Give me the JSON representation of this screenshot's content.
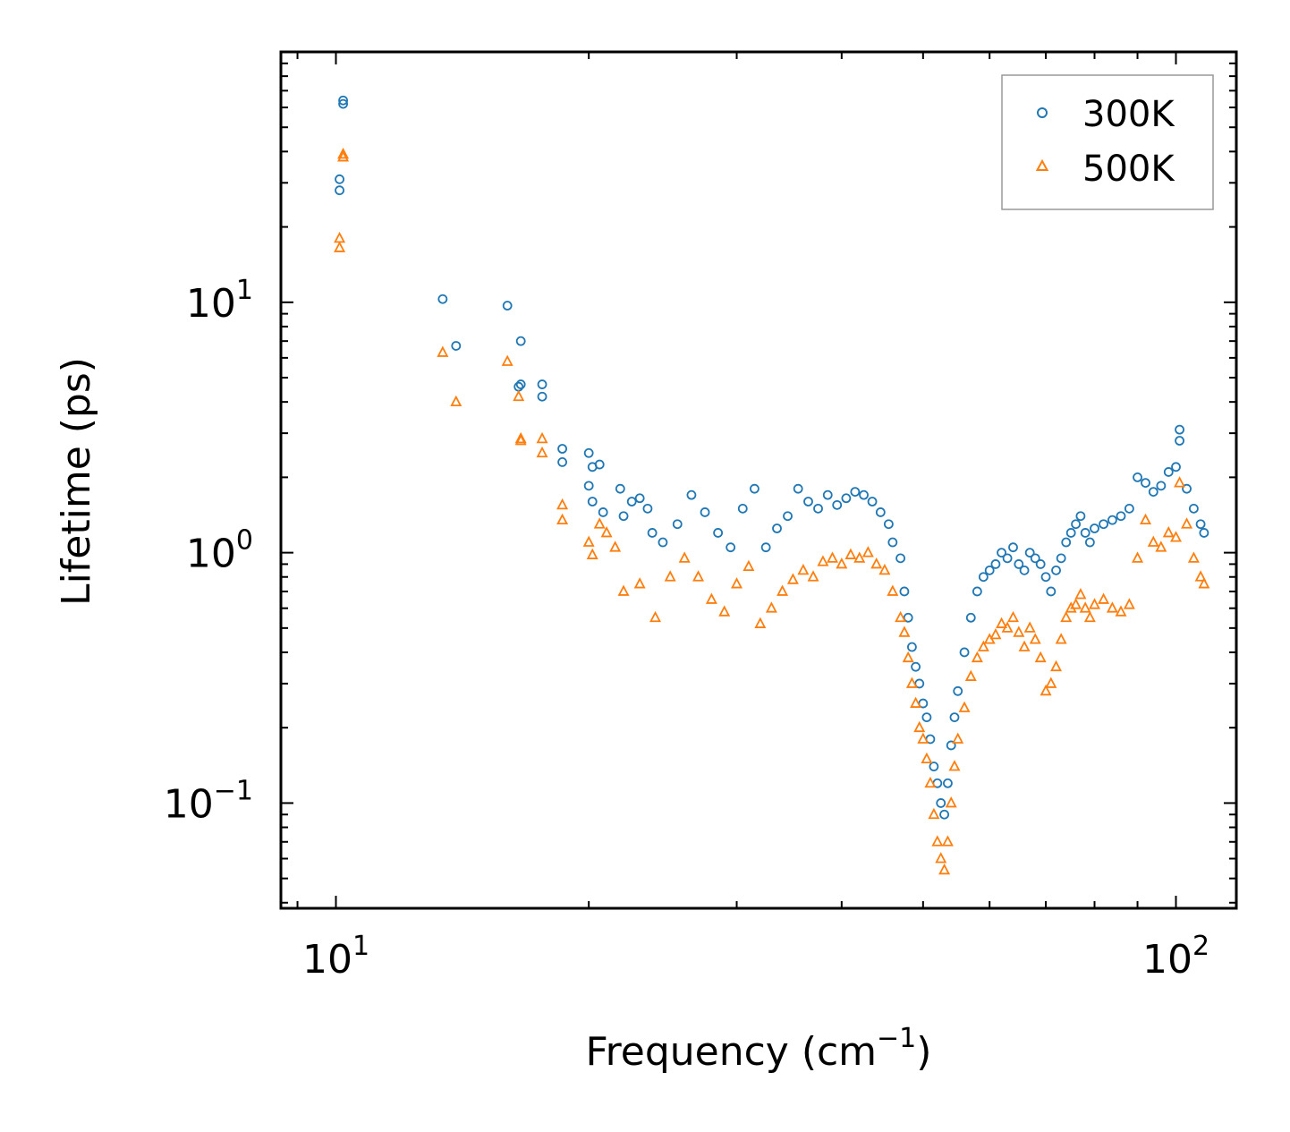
{
  "chart_data": {
    "type": "scatter",
    "title": "",
    "xlabel": "Frequency (cm",
    "xlabel_sup": "−1",
    "xlabel_end": ")",
    "ylabel": "Lifetime (ps)",
    "xscale": "log",
    "yscale": "log",
    "xlim": [
      8.6,
      118
    ],
    "ylim": [
      0.038,
      100
    ],
    "x_ticks": [
      {
        "value": 10,
        "base": "10",
        "exp": "1"
      },
      {
        "value": 100,
        "base": "10",
        "exp": "2"
      }
    ],
    "y_ticks": [
      {
        "value": 0.1,
        "base": "10",
        "exp": "−1"
      },
      {
        "value": 1,
        "base": "10",
        "exp": "0"
      },
      {
        "value": 10,
        "base": "10",
        "exp": "1"
      }
    ],
    "legend_position": "top-right",
    "series": [
      {
        "name": "300K",
        "marker": "circle",
        "color": "#1f77b4",
        "points": [
          [
            10.1,
            31
          ],
          [
            10.1,
            28
          ],
          [
            10.2,
            62
          ],
          [
            10.2,
            64
          ],
          [
            13.4,
            10.3
          ],
          [
            13.9,
            6.7
          ],
          [
            16.0,
            9.7
          ],
          [
            16.5,
            4.6
          ],
          [
            16.6,
            7.0
          ],
          [
            16.6,
            4.7
          ],
          [
            17.6,
            4.7
          ],
          [
            17.6,
            4.2
          ],
          [
            18.6,
            2.6
          ],
          [
            18.6,
            2.3
          ],
          [
            20.0,
            2.5
          ],
          [
            20.2,
            2.2
          ],
          [
            20.6,
            2.25
          ],
          [
            20.0,
            1.85
          ],
          [
            20.2,
            1.6
          ],
          [
            20.8,
            1.45
          ],
          [
            21.8,
            1.8
          ],
          [
            22.0,
            1.4
          ],
          [
            23.0,
            1.65
          ],
          [
            23.5,
            1.5
          ],
          [
            22.5,
            1.6
          ],
          [
            23.8,
            1.2
          ],
          [
            24.5,
            1.1
          ],
          [
            25.5,
            1.3
          ],
          [
            26.5,
            1.7
          ],
          [
            27.5,
            1.45
          ],
          [
            28.5,
            1.2
          ],
          [
            29.5,
            1.05
          ],
          [
            30.5,
            1.5
          ],
          [
            31.5,
            1.8
          ],
          [
            32.5,
            1.05
          ],
          [
            33.5,
            1.25
          ],
          [
            34.5,
            1.4
          ],
          [
            35.5,
            1.8
          ],
          [
            36.5,
            1.6
          ],
          [
            37.5,
            1.5
          ],
          [
            38.5,
            1.7
          ],
          [
            39.5,
            1.55
          ],
          [
            40.5,
            1.65
          ],
          [
            41.5,
            1.75
          ],
          [
            42.5,
            1.7
          ],
          [
            43.5,
            1.6
          ],
          [
            44.5,
            1.45
          ],
          [
            45.5,
            1.3
          ],
          [
            46.0,
            1.1
          ],
          [
            47.0,
            0.95
          ],
          [
            47.5,
            0.7
          ],
          [
            48.0,
            0.55
          ],
          [
            48.5,
            0.42
          ],
          [
            49.0,
            0.35
          ],
          [
            49.5,
            0.3
          ],
          [
            50.0,
            0.25
          ],
          [
            50.5,
            0.22
          ],
          [
            51.0,
            0.18
          ],
          [
            51.5,
            0.14
          ],
          [
            52.0,
            0.12
          ],
          [
            52.5,
            0.1
          ],
          [
            53.0,
            0.09
          ],
          [
            53.5,
            0.12
          ],
          [
            54.0,
            0.17
          ],
          [
            54.5,
            0.22
          ],
          [
            55.0,
            0.28
          ],
          [
            56.0,
            0.4
          ],
          [
            57.0,
            0.55
          ],
          [
            58.0,
            0.7
          ],
          [
            59.0,
            0.8
          ],
          [
            60.0,
            0.85
          ],
          [
            61.0,
            0.9
          ],
          [
            62.0,
            1.0
          ],
          [
            63.0,
            0.95
          ],
          [
            64.0,
            1.05
          ],
          [
            65.0,
            0.9
          ],
          [
            66.0,
            0.85
          ],
          [
            67.0,
            1.0
          ],
          [
            68.0,
            0.95
          ],
          [
            69.0,
            0.9
          ],
          [
            70.0,
            0.8
          ],
          [
            71.0,
            0.7
          ],
          [
            72.0,
            0.85
          ],
          [
            73.0,
            0.95
          ],
          [
            74.0,
            1.1
          ],
          [
            75.0,
            1.2
          ],
          [
            76.0,
            1.3
          ],
          [
            77.0,
            1.4
          ],
          [
            78.0,
            1.2
          ],
          [
            79.0,
            1.1
          ],
          [
            80.0,
            1.25
          ],
          [
            82.0,
            1.3
          ],
          [
            84.0,
            1.35
          ],
          [
            86.0,
            1.4
          ],
          [
            88.0,
            1.5
          ],
          [
            90.0,
            2.0
          ],
          [
            92.0,
            1.9
          ],
          [
            94.0,
            1.75
          ],
          [
            96.0,
            1.85
          ],
          [
            98.0,
            2.1
          ],
          [
            100.0,
            2.2
          ],
          [
            101.0,
            3.1
          ],
          [
            101.0,
            2.8
          ],
          [
            103.0,
            1.8
          ],
          [
            105.0,
            1.5
          ],
          [
            107.0,
            1.3
          ],
          [
            108.0,
            1.2
          ]
        ]
      },
      {
        "name": "500K",
        "marker": "triangle",
        "color": "#ff7f0e",
        "points": [
          [
            10.1,
            18
          ],
          [
            10.1,
            16.5
          ],
          [
            10.2,
            38
          ],
          [
            10.2,
            39
          ],
          [
            13.4,
            6.3
          ],
          [
            13.9,
            4.0
          ],
          [
            16.0,
            5.8
          ],
          [
            16.5,
            4.2
          ],
          [
            16.6,
            2.8
          ],
          [
            16.6,
            2.85
          ],
          [
            17.6,
            2.85
          ],
          [
            17.6,
            2.5
          ],
          [
            18.6,
            1.55
          ],
          [
            18.6,
            1.35
          ],
          [
            20.0,
            1.1
          ],
          [
            20.2,
            0.98
          ],
          [
            20.6,
            1.3
          ],
          [
            21.0,
            1.2
          ],
          [
            21.5,
            1.05
          ],
          [
            22.0,
            0.7
          ],
          [
            23.0,
            0.75
          ],
          [
            24.0,
            0.55
          ],
          [
            25.0,
            0.8
          ],
          [
            26.0,
            0.95
          ],
          [
            27.0,
            0.8
          ],
          [
            28.0,
            0.65
          ],
          [
            29.0,
            0.58
          ],
          [
            30.0,
            0.75
          ],
          [
            31.0,
            0.88
          ],
          [
            32.0,
            0.52
          ],
          [
            33.0,
            0.6
          ],
          [
            34.0,
            0.7
          ],
          [
            35.0,
            0.78
          ],
          [
            36.0,
            0.85
          ],
          [
            37.0,
            0.8
          ],
          [
            38.0,
            0.92
          ],
          [
            39.0,
            0.95
          ],
          [
            40.0,
            0.9
          ],
          [
            41.0,
            0.98
          ],
          [
            42.0,
            0.95
          ],
          [
            43.0,
            1.0
          ],
          [
            44.0,
            0.9
          ],
          [
            45.0,
            0.85
          ],
          [
            46.0,
            0.7
          ],
          [
            47.0,
            0.55
          ],
          [
            47.5,
            0.48
          ],
          [
            48.0,
            0.38
          ],
          [
            48.5,
            0.3
          ],
          [
            49.0,
            0.25
          ],
          [
            49.5,
            0.2
          ],
          [
            50.0,
            0.18
          ],
          [
            50.5,
            0.15
          ],
          [
            51.0,
            0.12
          ],
          [
            51.5,
            0.09
          ],
          [
            52.0,
            0.07
          ],
          [
            52.5,
            0.06
          ],
          [
            53.0,
            0.054
          ],
          [
            53.5,
            0.07
          ],
          [
            54.0,
            0.1
          ],
          [
            54.5,
            0.14
          ],
          [
            55.0,
            0.18
          ],
          [
            56.0,
            0.24
          ],
          [
            57.0,
            0.32
          ],
          [
            58.0,
            0.38
          ],
          [
            59.0,
            0.42
          ],
          [
            60.0,
            0.45
          ],
          [
            61.0,
            0.47
          ],
          [
            62.0,
            0.52
          ],
          [
            63.0,
            0.5
          ],
          [
            64.0,
            0.55
          ],
          [
            65.0,
            0.48
          ],
          [
            66.0,
            0.42
          ],
          [
            67.0,
            0.5
          ],
          [
            68.0,
            0.45
          ],
          [
            69.0,
            0.38
          ],
          [
            70.0,
            0.28
          ],
          [
            71.0,
            0.3
          ],
          [
            72.0,
            0.35
          ],
          [
            73.0,
            0.45
          ],
          [
            74.0,
            0.55
          ],
          [
            75.0,
            0.6
          ],
          [
            76.0,
            0.62
          ],
          [
            77.0,
            0.68
          ],
          [
            78.0,
            0.6
          ],
          [
            79.0,
            0.55
          ],
          [
            80.0,
            0.62
          ],
          [
            82.0,
            0.65
          ],
          [
            84.0,
            0.6
          ],
          [
            86.0,
            0.58
          ],
          [
            88.0,
            0.62
          ],
          [
            90.0,
            0.95
          ],
          [
            92.0,
            1.35
          ],
          [
            94.0,
            1.1
          ],
          [
            96.0,
            1.05
          ],
          [
            98.0,
            1.2
          ],
          [
            100.0,
            1.15
          ],
          [
            101.0,
            1.9
          ],
          [
            103.0,
            1.3
          ],
          [
            105.0,
            0.95
          ],
          [
            107.0,
            0.8
          ],
          [
            108.0,
            0.75
          ]
        ]
      }
    ]
  }
}
